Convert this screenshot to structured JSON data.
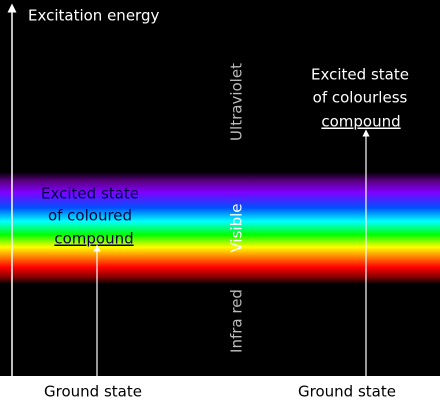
{
  "axis_label": "Excitation energy",
  "regions": [
    "Ultraviolet",
    "Visible",
    "Infra red"
  ],
  "coloured": {
    "lines": [
      "Excited state",
      "of coloured",
      "compound"
    ]
  },
  "colourless": {
    "lines": [
      "Excited state",
      "of colourless",
      "compound"
    ]
  },
  "ground": {
    "left": "Ground state",
    "right": "Ground state"
  }
}
